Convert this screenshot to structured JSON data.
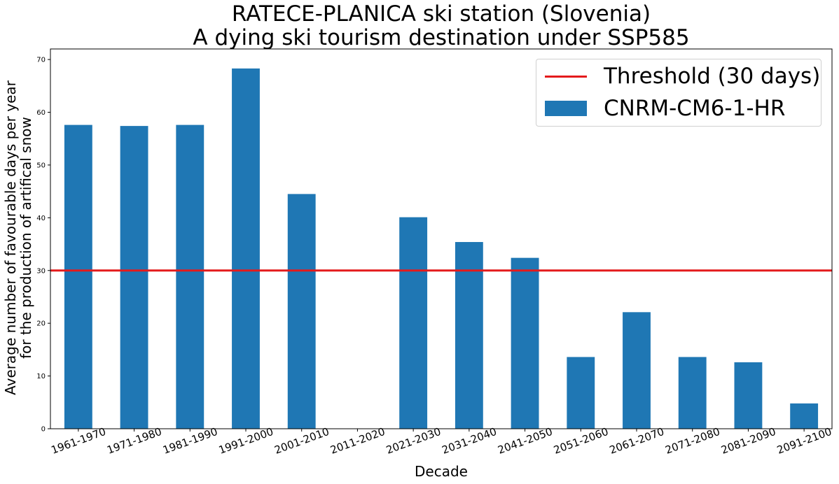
{
  "chart_data": {
    "type": "bar",
    "title_lines": [
      "RATECE-PLANICA ski station (Slovenia)",
      "A dying ski tourism destination under SSP585"
    ],
    "xlabel": "Decade",
    "ylabel_lines": [
      "Average number of favourable days per year",
      "for the production of artifical snow"
    ],
    "categories": [
      "1961-1970",
      "1971-1980",
      "1981-1990",
      "1991-2000",
      "2001-2010",
      "2011-2020",
      "2021-2030",
      "2031-2040",
      "2041-2050",
      "2051-2060",
      "2061-2070",
      "2071-2080",
      "2081-2090",
      "2091-2100"
    ],
    "series": [
      {
        "name": "CNRM-CM6-1-HR",
        "color": "#1f77b4",
        "values": [
          57.6,
          57.4,
          57.6,
          68.3,
          44.5,
          0,
          40.1,
          35.4,
          32.4,
          13.6,
          22.1,
          13.6,
          12.6,
          4.8
        ]
      }
    ],
    "threshold": {
      "name": "Threshold (30 days)",
      "value": 30,
      "color": "#e41a1c"
    },
    "ylim": [
      0,
      72
    ],
    "yticks": [
      0,
      10,
      20,
      30,
      40,
      50,
      60,
      70
    ],
    "legend_position": "top-right",
    "grid": false
  }
}
